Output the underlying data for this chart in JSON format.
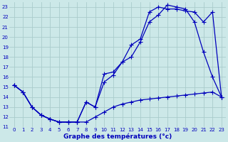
{
  "xlabel": "Graphe des températures (°c)",
  "xlim": [
    -0.5,
    23.5
  ],
  "ylim": [
    11,
    23.5
  ],
  "xticks": [
    0,
    1,
    2,
    3,
    4,
    5,
    6,
    7,
    8,
    9,
    10,
    11,
    12,
    13,
    14,
    15,
    16,
    17,
    18,
    19,
    20,
    21,
    22,
    23
  ],
  "yticks": [
    11,
    12,
    13,
    14,
    15,
    16,
    17,
    18,
    19,
    20,
    21,
    22,
    23
  ],
  "bg_color": "#cce8e8",
  "line_color": "#0000bb",
  "grid_color": "#aacccc",
  "line1_x": [
    0,
    1,
    2,
    3,
    4,
    5,
    6,
    7,
    8,
    9,
    10,
    11,
    12,
    13,
    14,
    15,
    16,
    17,
    18,
    19,
    20,
    21,
    22,
    23
  ],
  "line1_y": [
    15.2,
    14.5,
    13.0,
    12.2,
    11.8,
    11.5,
    11.5,
    11.5,
    11.5,
    12.0,
    12.5,
    13.0,
    13.3,
    13.5,
    13.7,
    13.8,
    13.9,
    14.0,
    14.1,
    14.2,
    14.3,
    14.4,
    14.5,
    14.0
  ],
  "line2_x": [
    0,
    1,
    2,
    3,
    4,
    5,
    6,
    7,
    8,
    9,
    10,
    11,
    12,
    13,
    14,
    15,
    16,
    17,
    18,
    19,
    20,
    21,
    22,
    23
  ],
  "line2_y": [
    15.2,
    14.5,
    13.0,
    12.2,
    11.8,
    11.5,
    11.5,
    11.5,
    13.5,
    13.0,
    15.5,
    16.2,
    17.5,
    18.0,
    19.5,
    21.5,
    22.2,
    23.2,
    23.0,
    22.8,
    21.5,
    18.5,
    16.0,
    14.0
  ],
  "line3_x": [
    0,
    1,
    2,
    3,
    4,
    5,
    6,
    7,
    8,
    9,
    10,
    11,
    12,
    13,
    14,
    15,
    16,
    17,
    18,
    19,
    20,
    21,
    22,
    23
  ],
  "line3_y": [
    15.2,
    14.5,
    13.0,
    12.2,
    11.8,
    11.5,
    11.5,
    11.5,
    13.5,
    13.0,
    16.3,
    16.5,
    17.5,
    19.2,
    19.8,
    22.5,
    23.0,
    22.8,
    22.8,
    22.6,
    22.5,
    21.5,
    22.5,
    14.0
  ]
}
